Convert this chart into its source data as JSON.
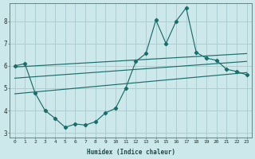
{
  "xlabel": "Humidex (Indice chaleur)",
  "bg_color": "#cce8ea",
  "grid_color": "#aacfd2",
  "line_color": "#1a6e6a",
  "xlim": [
    -0.5,
    23.5
  ],
  "ylim": [
    2.8,
    8.8
  ],
  "xticks": [
    0,
    1,
    2,
    3,
    4,
    5,
    6,
    7,
    8,
    9,
    10,
    11,
    12,
    13,
    14,
    15,
    16,
    17,
    18,
    19,
    20,
    21,
    22,
    23
  ],
  "yticks": [
    3,
    4,
    5,
    6,
    7,
    8
  ],
  "main_x": [
    0,
    1,
    2,
    3,
    4,
    5,
    6,
    7,
    8,
    9,
    10,
    11,
    12,
    13,
    14,
    15,
    16,
    17,
    18,
    19,
    20,
    21,
    22,
    23
  ],
  "main_y": [
    6.0,
    6.1,
    4.8,
    4.0,
    3.65,
    3.25,
    3.4,
    3.35,
    3.5,
    3.9,
    4.1,
    5.0,
    6.2,
    6.55,
    8.05,
    7.0,
    8.0,
    8.6,
    6.6,
    6.35,
    6.25,
    5.85,
    5.75,
    5.6
  ],
  "line1_x": [
    0,
    23
  ],
  "line1_y": [
    5.95,
    6.55
  ],
  "line2_x": [
    0,
    23
  ],
  "line2_y": [
    5.45,
    6.2
  ],
  "line3_x": [
    0,
    23
  ],
  "line3_y": [
    4.75,
    5.7
  ]
}
